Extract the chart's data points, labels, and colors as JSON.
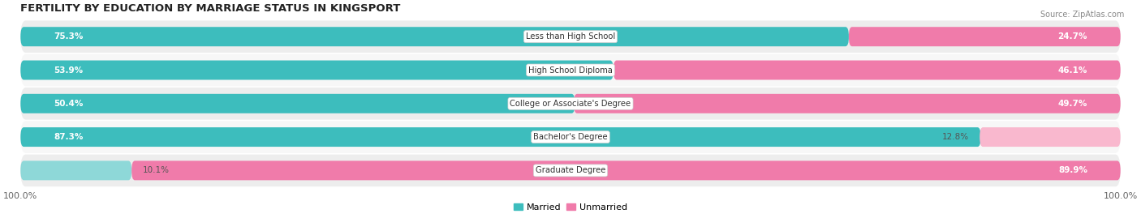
{
  "title": "FERTILITY BY EDUCATION BY MARRIAGE STATUS IN KINGSPORT",
  "source": "Source: ZipAtlas.com",
  "categories": [
    "Less than High School",
    "High School Diploma",
    "College or Associate's Degree",
    "Bachelor's Degree",
    "Graduate Degree"
  ],
  "married": [
    75.3,
    53.9,
    50.4,
    87.3,
    10.1
  ],
  "unmarried": [
    24.7,
    46.1,
    49.7,
    12.8,
    89.9
  ],
  "married_color": "#3DBDBD",
  "unmarried_color": "#F07BAA",
  "married_color_light": "#8ED8D8",
  "unmarried_color_light": "#F9B8CE",
  "row_bg_even": "#EDEDED",
  "row_bg_odd": "#F7F7F7",
  "title_fontsize": 9.5,
  "bar_height": 0.58,
  "figsize": [
    14.06,
    2.69
  ],
  "dpi": 100,
  "x_axis_labels": [
    "100.0%",
    "100.0%"
  ],
  "legend_labels": [
    "Married",
    "Unmarried"
  ]
}
